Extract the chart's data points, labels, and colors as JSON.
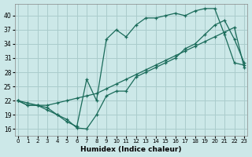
{
  "xlabel": "Humidex (Indice chaleur)",
  "bg_color": "#cce8e8",
  "grid_color": "#aacccc",
  "line_color": "#1a6b5a",
  "x_ticks": [
    0,
    1,
    2,
    3,
    4,
    5,
    6,
    7,
    8,
    9,
    10,
    11,
    12,
    13,
    14,
    15,
    16,
    17,
    18,
    19,
    20,
    21,
    22,
    23
  ],
  "y_ticks": [
    16,
    19,
    22,
    25,
    28,
    31,
    34,
    37,
    40
  ],
  "xlim": [
    -0.3,
    23.3
  ],
  "ylim": [
    14.5,
    42.5
  ],
  "line1_x": [
    0,
    1,
    2,
    3,
    4,
    5,
    6,
    7,
    8,
    9,
    10,
    11,
    12,
    13,
    14,
    15,
    16,
    17,
    18,
    19,
    20,
    21,
    22,
    23
  ],
  "line1_y": [
    22,
    21,
    21,
    20,
    19,
    18,
    16.2,
    16,
    19,
    23,
    24,
    24,
    27,
    28,
    29,
    30,
    31,
    33,
    34,
    36,
    38,
    39,
    35,
    30
  ],
  "line2_x": [
    0,
    1,
    2,
    3,
    4,
    5,
    6,
    7,
    8,
    9,
    10,
    11,
    12,
    13,
    14,
    15,
    16,
    17,
    18,
    19,
    20,
    21,
    22,
    23
  ],
  "line2_y": [
    22,
    21.5,
    21,
    21,
    21.5,
    22,
    22.5,
    23,
    23.5,
    24.5,
    25.5,
    26.5,
    27.5,
    28.5,
    29.5,
    30.5,
    31.5,
    32.5,
    33.5,
    34.5,
    35.5,
    36.5,
    37.5,
    29
  ],
  "line3_x": [
    0,
    1,
    2,
    3,
    4,
    5,
    6,
    7,
    8,
    9,
    10,
    11,
    12,
    13,
    14,
    15,
    16,
    17,
    18,
    19,
    20,
    21,
    22,
    23
  ],
  "line3_y": [
    22,
    21,
    21,
    20.5,
    19,
    17.5,
    16.5,
    26.5,
    22,
    35,
    37,
    35.5,
    38,
    39.5,
    39.5,
    40,
    40.5,
    40,
    41,
    41.5,
    41.5,
    36,
    30,
    29.5
  ]
}
